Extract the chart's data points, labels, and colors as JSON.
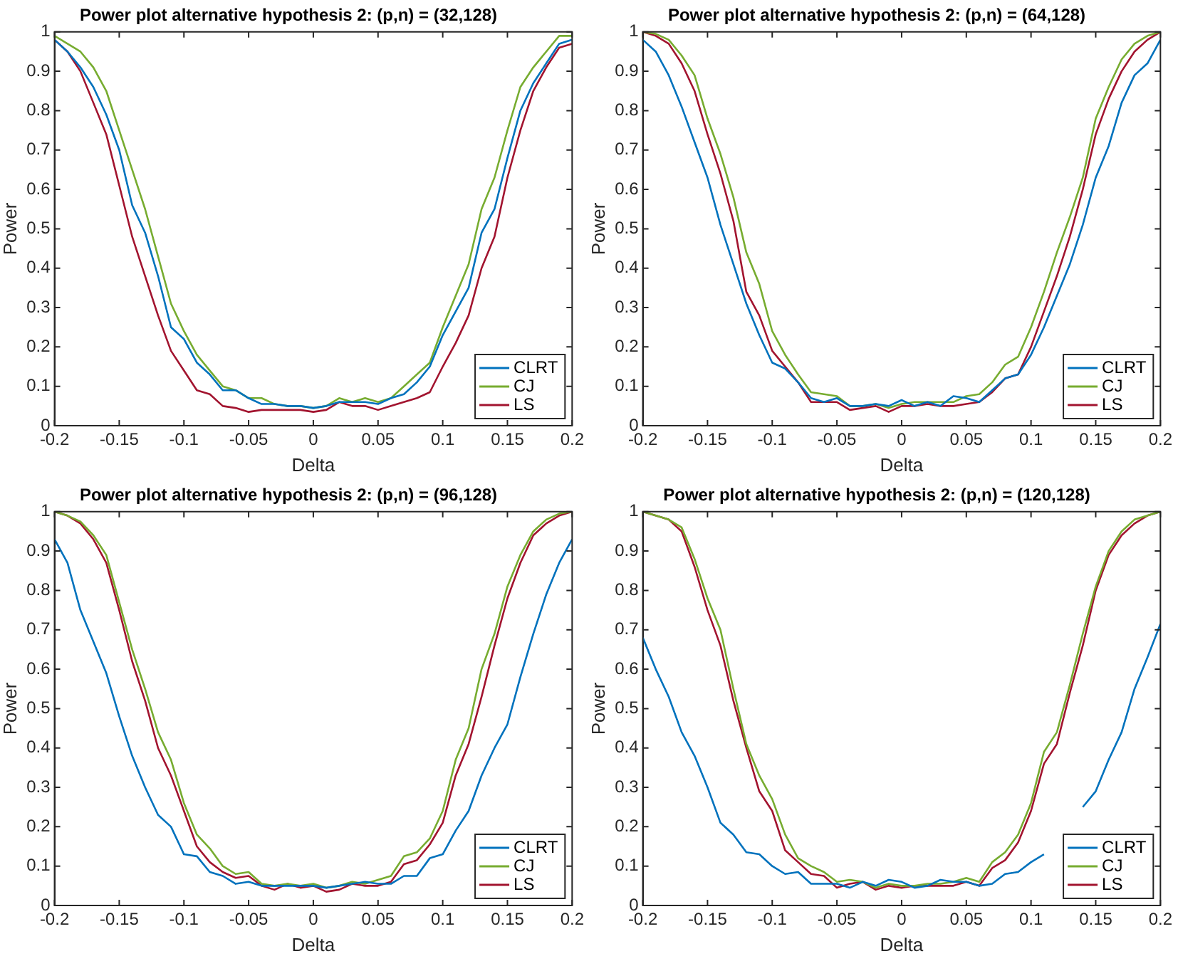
{
  "chart_data": [
    {
      "type": "line",
      "title": "Power plot alternative hypothesis 2: (p,n) = (32,128)",
      "xlabel": "Delta",
      "ylabel": "Power",
      "legend": "bottom right",
      "grid": false,
      "marker": "none",
      "line_style": "solid",
      "xlim": [
        -0.2,
        0.2
      ],
      "xticks": [
        -0.2,
        -0.15,
        -0.1,
        -0.05,
        0,
        0.05,
        0.1,
        0.15,
        0.2
      ],
      "ylim": [
        0,
        1
      ],
      "yticks": [
        0,
        0.1,
        0.2,
        0.3,
        0.4,
        0.5,
        0.6,
        0.7,
        0.8,
        0.9,
        1
      ],
      "x": [
        -0.2,
        -0.19,
        -0.18,
        -0.17,
        -0.16,
        -0.15,
        -0.14,
        -0.13,
        -0.12,
        -0.11,
        -0.1,
        -0.09,
        -0.08,
        -0.07,
        -0.06,
        -0.05,
        -0.04,
        -0.03,
        -0.02,
        -0.01,
        0,
        0.01,
        0.02,
        0.03,
        0.04,
        0.05,
        0.06,
        0.07,
        0.08,
        0.09,
        0.1,
        0.11,
        0.12,
        0.13,
        0.14,
        0.15,
        0.16,
        0.17,
        0.18,
        0.19,
        0.2
      ],
      "series": [
        {
          "name": "CLRT",
          "color": "#0072bd",
          "values": [
            0.98,
            0.95,
            0.91,
            0.86,
            0.79,
            0.7,
            0.56,
            0.49,
            0.38,
            0.25,
            0.22,
            0.16,
            0.13,
            0.09,
            0.09,
            0.07,
            0.055,
            0.055,
            0.05,
            0.05,
            0.045,
            0.05,
            0.06,
            0.06,
            0.06,
            0.055,
            0.07,
            0.08,
            0.11,
            0.15,
            0.23,
            0.29,
            0.35,
            0.49,
            0.55,
            0.68,
            0.8,
            0.87,
            0.92,
            0.97,
            0.98
          ]
        },
        {
          "name": "CJ",
          "color": "#77ac30",
          "values": [
            0.99,
            0.97,
            0.95,
            0.91,
            0.85,
            0.75,
            0.65,
            0.55,
            0.43,
            0.31,
            0.24,
            0.18,
            0.14,
            0.1,
            0.09,
            0.07,
            0.07,
            0.055,
            0.05,
            0.05,
            0.045,
            0.05,
            0.07,
            0.06,
            0.07,
            0.06,
            0.07,
            0.1,
            0.13,
            0.16,
            0.25,
            0.33,
            0.41,
            0.55,
            0.63,
            0.75,
            0.86,
            0.91,
            0.95,
            0.99,
            0.99
          ]
        },
        {
          "name": "LS",
          "color": "#a2142f",
          "values": [
            0.98,
            0.95,
            0.9,
            0.82,
            0.74,
            0.61,
            0.48,
            0.38,
            0.28,
            0.19,
            0.14,
            0.09,
            0.08,
            0.05,
            0.045,
            0.035,
            0.04,
            0.04,
            0.04,
            0.04,
            0.035,
            0.04,
            0.06,
            0.05,
            0.05,
            0.04,
            0.05,
            0.06,
            0.07,
            0.085,
            0.15,
            0.21,
            0.28,
            0.4,
            0.48,
            0.63,
            0.75,
            0.85,
            0.91,
            0.96,
            0.97
          ]
        }
      ]
    },
    {
      "type": "line",
      "title": "Power plot alternative hypothesis 2: (p,n) = (64,128)",
      "xlabel": "Delta",
      "ylabel": "Power",
      "legend": "bottom right",
      "grid": false,
      "marker": "none",
      "line_style": "solid",
      "xlim": [
        -0.2,
        0.2
      ],
      "xticks": [
        -0.2,
        -0.15,
        -0.1,
        -0.05,
        0,
        0.05,
        0.1,
        0.15,
        0.2
      ],
      "ylim": [
        0,
        1
      ],
      "yticks": [
        0,
        0.1,
        0.2,
        0.3,
        0.4,
        0.5,
        0.6,
        0.7,
        0.8,
        0.9,
        1
      ],
      "x": [
        -0.2,
        -0.19,
        -0.18,
        -0.17,
        -0.16,
        -0.15,
        -0.14,
        -0.13,
        -0.12,
        -0.11,
        -0.1,
        -0.09,
        -0.08,
        -0.07,
        -0.06,
        -0.05,
        -0.04,
        -0.03,
        -0.02,
        -0.01,
        0,
        0.01,
        0.02,
        0.03,
        0.04,
        0.05,
        0.06,
        0.07,
        0.08,
        0.09,
        0.1,
        0.11,
        0.12,
        0.13,
        0.14,
        0.15,
        0.16,
        0.17,
        0.18,
        0.19,
        0.2
      ],
      "series": [
        {
          "name": "CLRT",
          "color": "#0072bd",
          "values": [
            0.98,
            0.95,
            0.89,
            0.81,
            0.72,
            0.63,
            0.51,
            0.41,
            0.31,
            0.23,
            0.16,
            0.145,
            0.11,
            0.07,
            0.06,
            0.07,
            0.05,
            0.05,
            0.055,
            0.05,
            0.065,
            0.05,
            0.06,
            0.05,
            0.075,
            0.07,
            0.06,
            0.09,
            0.12,
            0.13,
            0.18,
            0.25,
            0.33,
            0.41,
            0.51,
            0.63,
            0.71,
            0.82,
            0.89,
            0.92,
            0.98
          ]
        },
        {
          "name": "CJ",
          "color": "#77ac30",
          "values": [
            1.0,
            0.995,
            0.98,
            0.94,
            0.89,
            0.78,
            0.69,
            0.58,
            0.44,
            0.36,
            0.24,
            0.18,
            0.13,
            0.085,
            0.08,
            0.075,
            0.05,
            0.05,
            0.055,
            0.045,
            0.055,
            0.06,
            0.06,
            0.06,
            0.06,
            0.075,
            0.08,
            0.11,
            0.155,
            0.175,
            0.25,
            0.34,
            0.44,
            0.53,
            0.63,
            0.78,
            0.86,
            0.93,
            0.97,
            0.99,
            1.0
          ]
        },
        {
          "name": "LS",
          "color": "#a2142f",
          "values": [
            1.0,
            0.99,
            0.97,
            0.92,
            0.85,
            0.74,
            0.64,
            0.52,
            0.34,
            0.28,
            0.19,
            0.15,
            0.11,
            0.06,
            0.06,
            0.06,
            0.04,
            0.045,
            0.05,
            0.035,
            0.05,
            0.05,
            0.055,
            0.05,
            0.05,
            0.055,
            0.06,
            0.085,
            0.12,
            0.13,
            0.2,
            0.29,
            0.38,
            0.48,
            0.6,
            0.74,
            0.83,
            0.9,
            0.95,
            0.98,
            1.0
          ]
        }
      ]
    },
    {
      "type": "line",
      "title": "Power plot alternative hypothesis 2: (p,n) = (96,128)",
      "xlabel": "Delta",
      "ylabel": "Power",
      "legend": "bottom right",
      "grid": false,
      "marker": "none",
      "line_style": "solid",
      "xlim": [
        -0.2,
        0.2
      ],
      "xticks": [
        -0.2,
        -0.15,
        -0.1,
        -0.05,
        0,
        0.05,
        0.1,
        0.15,
        0.2
      ],
      "ylim": [
        0,
        1
      ],
      "yticks": [
        0,
        0.1,
        0.2,
        0.3,
        0.4,
        0.5,
        0.6,
        0.7,
        0.8,
        0.9,
        1
      ],
      "x": [
        -0.2,
        -0.19,
        -0.18,
        -0.17,
        -0.16,
        -0.15,
        -0.14,
        -0.13,
        -0.12,
        -0.11,
        -0.1,
        -0.09,
        -0.08,
        -0.07,
        -0.06,
        -0.05,
        -0.04,
        -0.03,
        -0.02,
        -0.01,
        0,
        0.01,
        0.02,
        0.03,
        0.04,
        0.05,
        0.06,
        0.07,
        0.08,
        0.09,
        0.1,
        0.11,
        0.12,
        0.13,
        0.14,
        0.15,
        0.16,
        0.17,
        0.18,
        0.19,
        0.2
      ],
      "series": [
        {
          "name": "CLRT",
          "color": "#0072bd",
          "values": [
            0.93,
            0.87,
            0.75,
            0.67,
            0.59,
            0.48,
            0.38,
            0.3,
            0.23,
            0.2,
            0.13,
            0.125,
            0.085,
            0.075,
            0.055,
            0.06,
            0.05,
            0.05,
            0.05,
            0.05,
            0.05,
            0.045,
            0.05,
            0.055,
            0.06,
            0.055,
            0.055,
            0.075,
            0.075,
            0.12,
            0.13,
            0.19,
            0.24,
            0.33,
            0.4,
            0.46,
            0.58,
            0.69,
            0.79,
            0.87,
            0.93
          ]
        },
        {
          "name": "CJ",
          "color": "#77ac30",
          "values": [
            1.0,
            0.99,
            0.975,
            0.94,
            0.89,
            0.77,
            0.65,
            0.55,
            0.44,
            0.37,
            0.26,
            0.18,
            0.145,
            0.1,
            0.08,
            0.085,
            0.055,
            0.05,
            0.055,
            0.05,
            0.055,
            0.045,
            0.05,
            0.06,
            0.055,
            0.065,
            0.075,
            0.125,
            0.135,
            0.17,
            0.24,
            0.37,
            0.45,
            0.6,
            0.69,
            0.81,
            0.89,
            0.95,
            0.98,
            0.995,
            1.0
          ]
        },
        {
          "name": "LS",
          "color": "#a2142f",
          "values": [
            1.0,
            0.99,
            0.97,
            0.93,
            0.87,
            0.75,
            0.62,
            0.52,
            0.4,
            0.33,
            0.24,
            0.15,
            0.11,
            0.085,
            0.07,
            0.075,
            0.05,
            0.04,
            0.055,
            0.045,
            0.05,
            0.035,
            0.04,
            0.055,
            0.05,
            0.05,
            0.06,
            0.105,
            0.115,
            0.155,
            0.21,
            0.33,
            0.41,
            0.53,
            0.66,
            0.78,
            0.87,
            0.94,
            0.97,
            0.99,
            1.0
          ]
        }
      ]
    },
    {
      "type": "line",
      "title": "Power plot alternative hypothesis 2: (p,n) = (120,128)",
      "xlabel": "Delta",
      "ylabel": "Power",
      "legend": "bottom right",
      "grid": false,
      "marker": "none",
      "line_style": "solid",
      "xlim": [
        -0.2,
        0.2
      ],
      "xticks": [
        -0.2,
        -0.15,
        -0.1,
        -0.05,
        0,
        0.05,
        0.1,
        0.15,
        0.2
      ],
      "ylim": [
        0,
        1
      ],
      "yticks": [
        0,
        0.1,
        0.2,
        0.3,
        0.4,
        0.5,
        0.6,
        0.7,
        0.8,
        0.9,
        1
      ],
      "x": [
        -0.2,
        -0.19,
        -0.18,
        -0.17,
        -0.16,
        -0.15,
        -0.14,
        -0.13,
        -0.12,
        -0.11,
        -0.1,
        -0.09,
        -0.08,
        -0.07,
        -0.06,
        -0.05,
        -0.04,
        -0.03,
        -0.02,
        -0.01,
        0,
        0.01,
        0.02,
        0.03,
        0.04,
        0.05,
        0.06,
        0.07,
        0.08,
        0.09,
        0.1,
        0.11,
        0.12,
        0.13,
        0.14,
        0.15,
        0.16,
        0.17,
        0.18,
        0.19,
        0.2
      ],
      "series": [
        {
          "name": "CLRT",
          "color": "#0072bd",
          "values": [
            0.68,
            0.6,
            0.53,
            0.44,
            0.38,
            0.3,
            0.21,
            0.18,
            0.135,
            0.13,
            0.1,
            0.08,
            0.085,
            0.055,
            0.055,
            0.055,
            0.045,
            0.06,
            0.05,
            0.065,
            0.06,
            0.045,
            0.05,
            0.065,
            0.06,
            0.06,
            0.05,
            0.055,
            0.08,
            0.085,
            0.11,
            0.13,
            null,
            null,
            0.25,
            0.29,
            0.37,
            0.44,
            0.55,
            0.63,
            0.715
          ]
        },
        {
          "name": "CJ",
          "color": "#77ac30",
          "values": [
            1.0,
            0.99,
            0.98,
            0.96,
            0.88,
            0.78,
            0.7,
            0.55,
            0.41,
            0.33,
            0.27,
            0.18,
            0.12,
            0.1,
            0.085,
            0.06,
            0.065,
            0.06,
            0.045,
            0.055,
            0.05,
            0.05,
            0.055,
            0.055,
            0.06,
            0.07,
            0.06,
            0.11,
            0.135,
            0.18,
            0.26,
            0.39,
            0.44,
            0.56,
            0.69,
            0.81,
            0.9,
            0.95,
            0.98,
            0.99,
            1.0
          ]
        },
        {
          "name": "LS",
          "color": "#a2142f",
          "values": [
            1.0,
            0.99,
            0.98,
            0.95,
            0.86,
            0.75,
            0.66,
            0.52,
            0.4,
            0.29,
            0.24,
            0.14,
            0.11,
            0.08,
            0.075,
            0.045,
            0.055,
            0.06,
            0.04,
            0.05,
            0.045,
            0.05,
            0.05,
            0.05,
            0.05,
            0.06,
            0.05,
            0.095,
            0.115,
            0.16,
            0.24,
            0.36,
            0.41,
            0.54,
            0.66,
            0.8,
            0.89,
            0.94,
            0.97,
            0.99,
            1.0
          ]
        }
      ]
    }
  ]
}
